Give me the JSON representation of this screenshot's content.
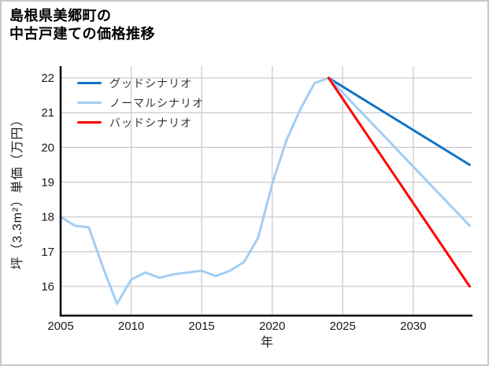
{
  "header": {
    "title": "島根県美郷町の\n中古戸建ての価格推移"
  },
  "colors": {
    "good": "#1273c5",
    "normal": "#a3cdf3",
    "bad": "#ff0000",
    "grid": "#cccccc",
    "axis": "#000000",
    "tick_text": "#1a1a1a",
    "frame": "#c9c9c9",
    "background": "#ffffff"
  },
  "chart_data": {
    "type": "line",
    "title": "島根県美郷町の中古戸建ての価格推移",
    "xlabel": "年",
    "ylabel": "坪（3.3m²）単価（万円）",
    "xlim": [
      2005,
      2034.2
    ],
    "ylim": [
      15.16,
      22.34
    ],
    "x_ticks": [
      2005,
      2010,
      2015,
      2020,
      2025,
      2030
    ],
    "y_ticks": [
      16,
      17,
      18,
      19,
      20,
      21,
      22
    ],
    "grid": true,
    "legend_position": "upper-left",
    "series": [
      {
        "id": "history",
        "label": "",
        "in_legend": false,
        "color": "#a3cdf3",
        "x": [
          2005,
          2006,
          2007,
          2008,
          2009,
          2010,
          2011,
          2012,
          2013,
          2014,
          2015,
          2016,
          2017,
          2018,
          2019,
          2020,
          2021,
          2022,
          2023,
          2024
        ],
        "values": [
          18.0,
          17.75,
          17.7,
          16.55,
          15.5,
          16.2,
          16.4,
          16.25,
          16.35,
          16.4,
          16.45,
          16.3,
          16.45,
          16.7,
          17.4,
          18.95,
          20.2,
          21.1,
          21.85,
          22.0
        ]
      },
      {
        "id": "good",
        "label": "グッドシナリオ",
        "in_legend": true,
        "color": "#1273c5",
        "x": [
          2024,
          2034
        ],
        "values": [
          22.0,
          19.5
        ]
      },
      {
        "id": "normal",
        "label": "ノーマルシナリオ",
        "in_legend": true,
        "color": "#a3cdf3",
        "x": [
          2024,
          2034
        ],
        "values": [
          22.0,
          17.75
        ]
      },
      {
        "id": "bad",
        "label": "バッドシナリオ",
        "in_legend": true,
        "color": "#ff0000",
        "x": [
          2024,
          2034
        ],
        "values": [
          22.0,
          16.0
        ]
      }
    ]
  }
}
